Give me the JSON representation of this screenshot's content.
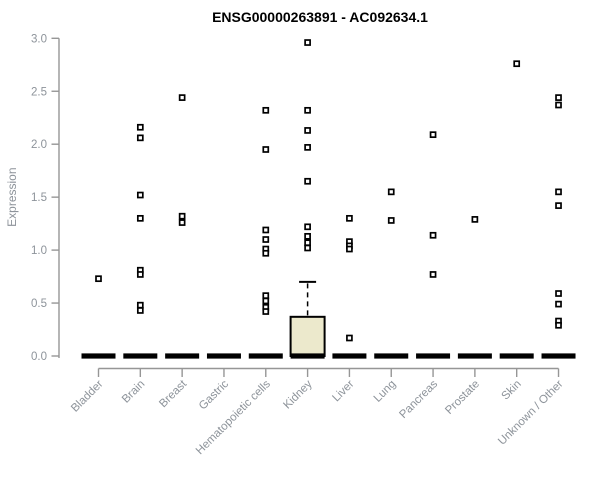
{
  "title": "ENSG00000263891 - AC092634.1",
  "colors": {
    "background": "#ffffff",
    "title_text": "#000000",
    "axis_line": "#969696",
    "axis_text": "#8d939a",
    "box_fill": "#ece9cc",
    "box_stroke": "#000000",
    "median_bar": "#000000",
    "point_stroke": "#000000",
    "point_fill": "#ffffff"
  },
  "chart_data": {
    "type": "boxplot",
    "title": "ENSG00000263891 - AC092634.1",
    "xlabel": "",
    "ylabel": "Expression",
    "ylim": [
      0.0,
      3.0
    ],
    "yticks": [
      0.0,
      0.5,
      1.0,
      1.5,
      2.0,
      2.5,
      3.0
    ],
    "grid": false,
    "legend": "none",
    "categories": [
      "Bladder",
      "Brain",
      "Breast",
      "Gastric",
      "Hematopoietic cells",
      "Kidney",
      "Liver",
      "Lung",
      "Pancreas",
      "Prostate",
      "Skin",
      "Unknown / Other"
    ],
    "series": [
      {
        "category": "Bladder",
        "median": 0.0,
        "q1": 0.0,
        "q3": 0.0,
        "whisker_low": 0.0,
        "whisker_high": 0.0,
        "outliers": [
          0.73
        ]
      },
      {
        "category": "Brain",
        "median": 0.0,
        "q1": 0.0,
        "q3": 0.0,
        "whisker_low": 0.0,
        "whisker_high": 0.0,
        "outliers": [
          2.16,
          2.06,
          1.52,
          1.3,
          0.81,
          0.77,
          0.48,
          0.43
        ]
      },
      {
        "category": "Breast",
        "median": 0.0,
        "q1": 0.0,
        "q3": 0.0,
        "whisker_low": 0.0,
        "whisker_high": 0.0,
        "outliers": [
          2.44,
          1.32,
          1.26
        ]
      },
      {
        "category": "Gastric",
        "median": 0.0,
        "q1": 0.0,
        "q3": 0.0,
        "whisker_low": 0.0,
        "whisker_high": 0.0,
        "outliers": []
      },
      {
        "category": "Hematopoietic cells",
        "median": 0.0,
        "q1": 0.0,
        "q3": 0.0,
        "whisker_low": 0.0,
        "whisker_high": 0.0,
        "outliers": [
          2.32,
          1.95,
          1.19,
          1.1,
          1.01,
          0.97,
          0.57,
          0.52,
          0.46,
          0.42
        ]
      },
      {
        "category": "Kidney",
        "median": 0.0,
        "q1": 0.0,
        "q3": 0.37,
        "whisker_low": 0.0,
        "whisker_high": 0.7,
        "outliers": [
          2.96,
          2.32,
          2.13,
          1.97,
          1.65,
          1.22,
          1.13,
          1.07,
          1.02
        ]
      },
      {
        "category": "Liver",
        "median": 0.0,
        "q1": 0.0,
        "q3": 0.0,
        "whisker_low": 0.0,
        "whisker_high": 0.0,
        "outliers": [
          1.3,
          1.08,
          1.04,
          1.01,
          0.17
        ]
      },
      {
        "category": "Lung",
        "median": 0.0,
        "q1": 0.0,
        "q3": 0.0,
        "whisker_low": 0.0,
        "whisker_high": 0.0,
        "outliers": [
          1.55,
          1.28
        ]
      },
      {
        "category": "Pancreas",
        "median": 0.0,
        "q1": 0.0,
        "q3": 0.0,
        "whisker_low": 0.0,
        "whisker_high": 0.0,
        "outliers": [
          2.09,
          1.14,
          0.77
        ]
      },
      {
        "category": "Prostate",
        "median": 0.0,
        "q1": 0.0,
        "q3": 0.0,
        "whisker_low": 0.0,
        "whisker_high": 0.0,
        "outliers": [
          1.29
        ]
      },
      {
        "category": "Skin",
        "median": 0.0,
        "q1": 0.0,
        "q3": 0.0,
        "whisker_low": 0.0,
        "whisker_high": 0.0,
        "outliers": [
          2.76
        ]
      },
      {
        "category": "Unknown / Other",
        "median": 0.0,
        "q1": 0.0,
        "q3": 0.0,
        "whisker_low": 0.0,
        "whisker_high": 0.0,
        "outliers": [
          2.44,
          2.37,
          1.55,
          1.42,
          0.59,
          0.49,
          0.33,
          0.29
        ]
      }
    ]
  }
}
